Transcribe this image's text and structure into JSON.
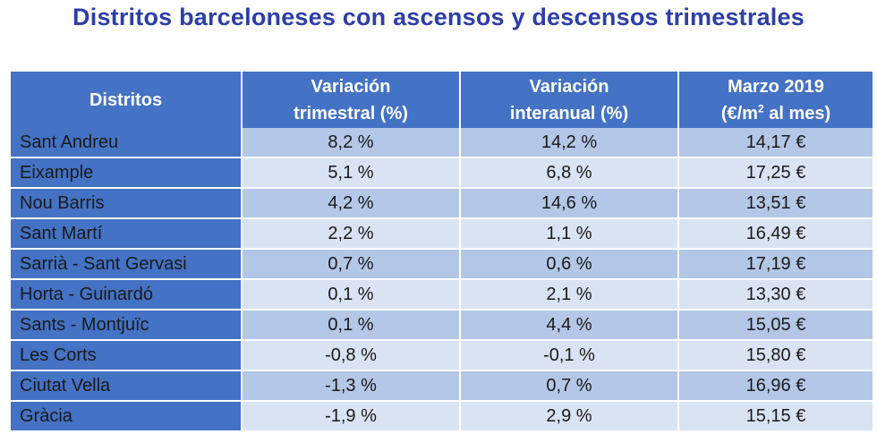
{
  "title": "Distritos barceloneses con ascensos y descensos trimestrales",
  "table": {
    "headers": {
      "col1": "Distritos",
      "col2_line1": "Variación",
      "col2_line2": "trimestral (%)",
      "col3_line1": "Variación",
      "col3_line2": "interanual (%)",
      "col4_line1": "Marzo 2019",
      "col4_line2a": "(€/m",
      "col4_sup": "2",
      "col4_line2b": " al mes)"
    },
    "rows": [
      {
        "district": "Sant Andreu",
        "trimestral": "8,2 %",
        "interanual": "14,2 %",
        "price": "14,17 €",
        "trim_neg": false,
        "inter_neg": false
      },
      {
        "district": "Eixample",
        "trimestral": "5,1 %",
        "interanual": "6,8 %",
        "price": "17,25 €",
        "trim_neg": false,
        "inter_neg": false
      },
      {
        "district": "Nou Barris",
        "trimestral": "4,2 %",
        "interanual": "14,6 %",
        "price": "13,51 €",
        "trim_neg": false,
        "inter_neg": false
      },
      {
        "district": "Sant Martí",
        "trimestral": "2,2 %",
        "interanual": "1,1 %",
        "price": "16,49 €",
        "trim_neg": false,
        "inter_neg": false
      },
      {
        "district": "Sarrià - Sant Gervasi",
        "trimestral": "0,7 %",
        "interanual": "0,6 %",
        "price": "17,19 €",
        "trim_neg": false,
        "inter_neg": false
      },
      {
        "district": "Horta - Guinardó",
        "trimestral": "0,1 %",
        "interanual": "2,1 %",
        "price": "13,30 €",
        "trim_neg": false,
        "inter_neg": false
      },
      {
        "district": "Sants - Montjuïc",
        "trimestral": "0,1 %",
        "interanual": "4,4 %",
        "price": "15,05 €",
        "trim_neg": false,
        "inter_neg": false
      },
      {
        "district": "Les Corts",
        "trimestral": "-0,8 %",
        "interanual": "-0,1 %",
        "price": "15,80 €",
        "trim_neg": true,
        "inter_neg": true
      },
      {
        "district": "Ciutat Vella",
        "trimestral": "-1,3 %",
        "interanual": "0,7 %",
        "price": "16,96 €",
        "trim_neg": true,
        "inter_neg": false
      },
      {
        "district": "Gràcia",
        "trimestral": "-1,9 %",
        "interanual": "2,9 %",
        "price": "15,15 €",
        "trim_neg": true,
        "inter_neg": false
      }
    ]
  },
  "colors": {
    "title": "#2e3ea8",
    "header_bg": "#4472c4",
    "row_dark": "#b4c7e7",
    "row_light": "#dae3f3",
    "negative": "#c00000"
  }
}
